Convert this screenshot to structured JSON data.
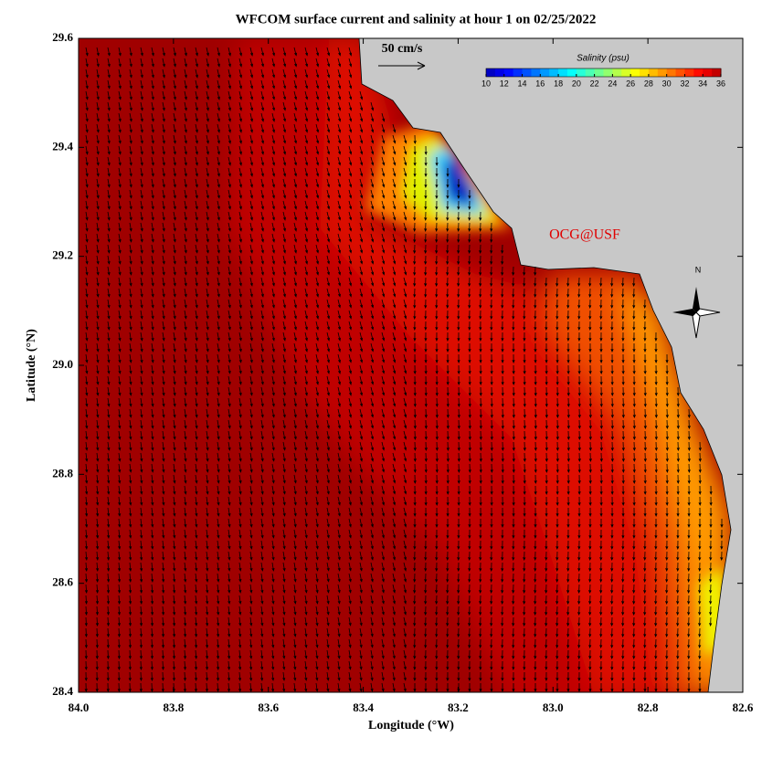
{
  "map": {
    "title": "WFCOM surface current and salinity at hour 1 on 02/25/2022",
    "x_label": "Longitude (°W)",
    "y_label": "Latitude (°N)",
    "xlim": [
      84.0,
      82.6
    ],
    "ylim": [
      28.4,
      29.6
    ],
    "xticks": [
      {
        "value": 84.0,
        "label": "84.0"
      },
      83.8,
      83.6,
      83.4,
      83.2,
      {
        "value": 83.0,
        "label": "83.0"
      },
      82.8,
      82.6
    ],
    "yticks": [
      28.4,
      28.6,
      28.8,
      {
        "value": 29.0,
        "label": "29.0"
      },
      29.2,
      29.4,
      29.6
    ],
    "scale_label": "50 cm/s",
    "colorbar": {
      "title": "Salinity (psu)",
      "lim": [
        10,
        36
      ],
      "ticks": [
        10,
        12,
        14,
        16,
        18,
        20,
        22,
        24,
        26,
        28,
        30,
        32,
        34,
        36
      ]
    },
    "credit": "OCG@USF",
    "compass_label": "N"
  }
}
